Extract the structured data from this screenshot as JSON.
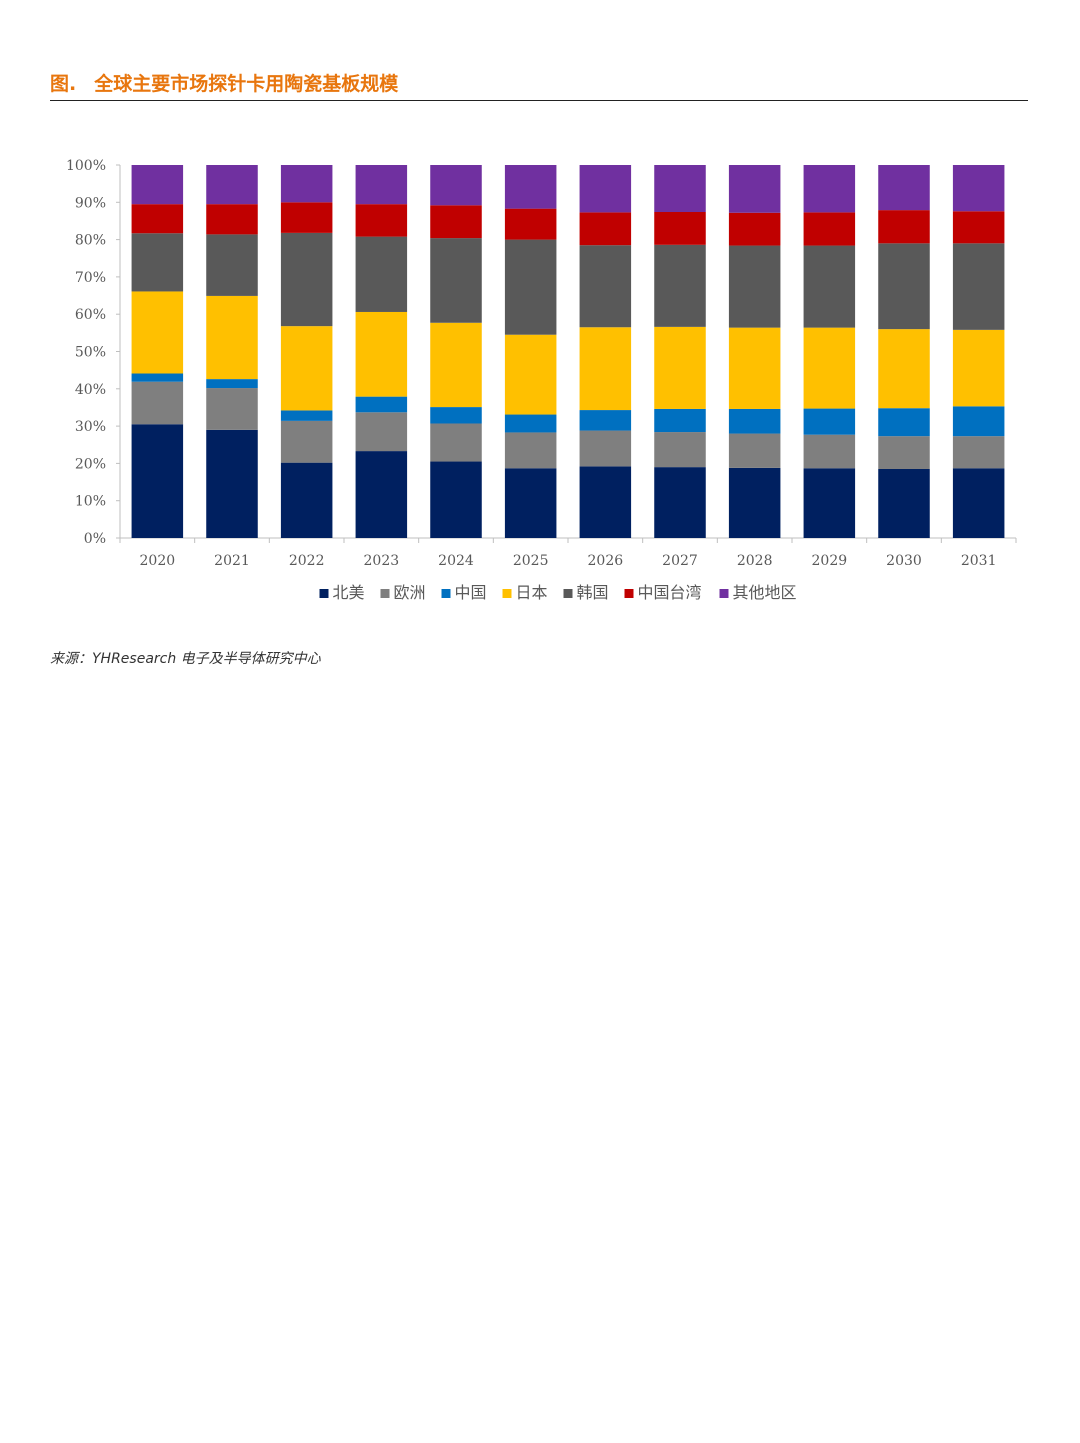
{
  "figure": {
    "label": "图.",
    "title": "全球主要市场探针卡用陶瓷基板规模"
  },
  "source": "来源：YHResearch 电子及半导体研究中心",
  "chart_data": {
    "type": "bar",
    "stacked": true,
    "percent": true,
    "categories": [
      "2020",
      "2021",
      "2022",
      "2023",
      "2024",
      "2025",
      "2026",
      "2027",
      "2028",
      "2029",
      "2030",
      "2031"
    ],
    "y_ticks": [
      "0%",
      "10%",
      "20%",
      "30%",
      "40%",
      "50%",
      "60%",
      "70%",
      "80%",
      "90%",
      "100%"
    ],
    "ylim": [
      0,
      100
    ],
    "legend_position": "bottom",
    "series": [
      {
        "name": "北美",
        "color": "#002060",
        "values": [
          30.5,
          29,
          20.2,
          23.3,
          20.5,
          18.7,
          19.2,
          19,
          18.8,
          18.7,
          18.5,
          18.7
        ]
      },
      {
        "name": "欧洲",
        "color": "#7F7F7F",
        "values": [
          11.4,
          11.2,
          11.2,
          10.4,
          10.2,
          9.6,
          9.6,
          9.4,
          9.2,
          9,
          8.8,
          8.6
        ]
      },
      {
        "name": "中国",
        "color": "#0070C0",
        "values": [
          2.2,
          2.4,
          2.8,
          4.2,
          4.4,
          4.8,
          5.5,
          6.2,
          6.6,
          7,
          7.5,
          8
        ]
      },
      {
        "name": "日本",
        "color": "#FFC000",
        "values": [
          22,
          22.3,
          22.6,
          22.7,
          22.6,
          21.4,
          22.2,
          22,
          21.8,
          21.7,
          21.2,
          20.5
        ]
      },
      {
        "name": "韩国",
        "color": "#595959",
        "values": [
          15.6,
          16.5,
          25,
          20.2,
          22.7,
          25.5,
          22,
          22,
          22,
          22,
          23,
          23.2
        ]
      },
      {
        "name": "中国台湾",
        "color": "#C00000",
        "values": [
          7.8,
          8.1,
          8.2,
          8.7,
          8.8,
          8.3,
          8.8,
          8.8,
          8.8,
          8.9,
          8.9,
          8.6
        ]
      },
      {
        "name": "其他地区",
        "color": "#7030A0",
        "values": [
          10.5,
          10.5,
          10,
          10.5,
          10.8,
          11.7,
          12.7,
          12.6,
          12.8,
          12.7,
          12.1,
          12.4
        ]
      }
    ]
  }
}
